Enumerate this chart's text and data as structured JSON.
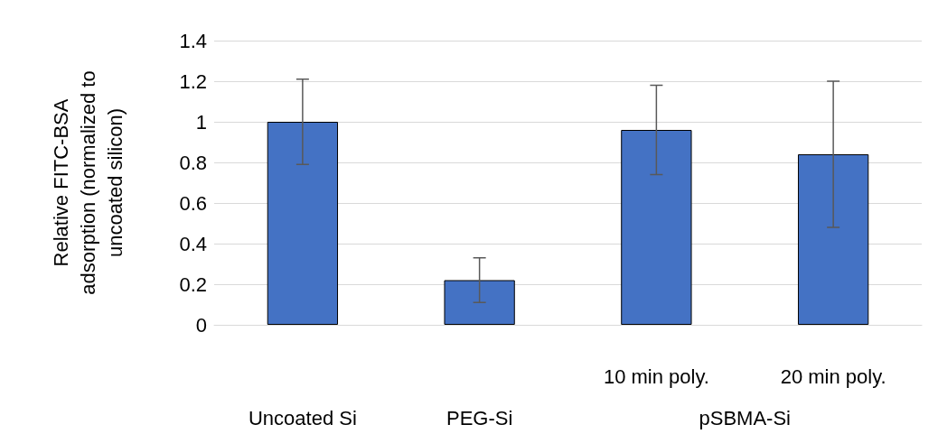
{
  "chart_data": {
    "type": "bar",
    "ylabel": "Relative FITC-BSA adsorption (normalized to uncoated silicon)",
    "categories": [
      "Uncoated Si",
      "PEG-Si",
      "10 min poly.",
      "20 min poly."
    ],
    "values": [
      1.0,
      0.22,
      0.96,
      0.84
    ],
    "errors": [
      0.21,
      0.11,
      0.22,
      0.36
    ],
    "color": "#4472c4",
    "annotations": [
      "pSBMA-Si"
    ],
    "ylim": [
      0,
      1.4
    ],
    "yticks": [
      0,
      0.2,
      0.4,
      0.6,
      0.8,
      1,
      1.2,
      1.4
    ],
    "grid": "y"
  }
}
